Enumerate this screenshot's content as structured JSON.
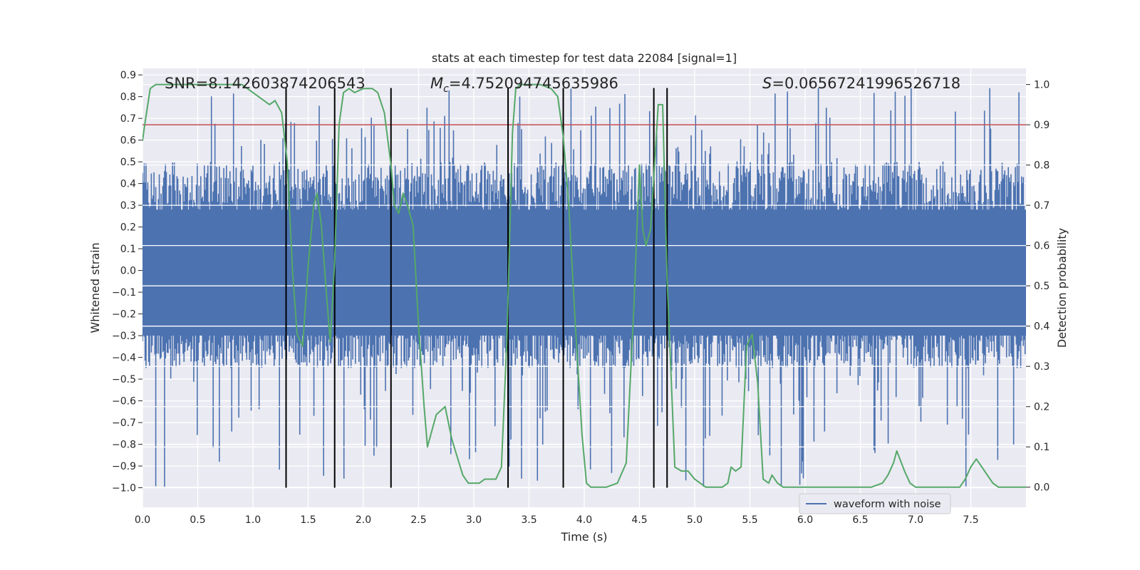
{
  "chart_data": {
    "type": "line",
    "title": "stats at each timestep for test data 22084 [signal=1]",
    "xlabel": "Time (s)",
    "ylabel": "Whitened strain",
    "y2label": "Detection probability",
    "xlim": [
      0.0,
      8.0
    ],
    "ylim": [
      -1.09,
      0.93
    ],
    "y2lim": [
      -0.05,
      1.04
    ],
    "xticks": [
      0.0,
      0.5,
      1.0,
      1.5,
      2.0,
      2.5,
      3.0,
      3.5,
      4.0,
      4.5,
      5.0,
      5.5,
      6.0,
      6.5,
      7.0,
      7.5
    ],
    "xtick_labels": [
      "0.0",
      "0.5",
      "1.0",
      "1.5",
      "2.0",
      "2.5",
      "3.0",
      "3.5",
      "4.0",
      "4.5",
      "5.0",
      "5.5",
      "6.0",
      "6.5",
      "7.0",
      "7.5"
    ],
    "yticks": [
      0.9,
      0.8,
      0.7,
      0.6,
      0.5,
      0.4,
      0.3,
      0.2,
      0.1,
      0.0,
      -0.1,
      -0.2,
      -0.3,
      -0.4,
      -0.5,
      -0.6,
      -0.7,
      -0.8,
      -0.9,
      -1.0
    ],
    "ytick_labels": [
      "0.9",
      "0.8",
      "0.7",
      "0.6",
      "0.5",
      "0.4",
      "0.3",
      "0.2",
      "0.1",
      "0.0",
      "−0.1",
      "−0.2",
      "−0.3",
      "−0.4",
      "−0.5",
      "−0.6",
      "−0.7",
      "−0.8",
      "−0.9",
      "−1.0"
    ],
    "y2ticks": [
      1.0,
      0.9,
      0.8,
      0.7,
      0.6,
      0.5,
      0.4,
      0.3,
      0.2,
      0.1,
      0.0
    ],
    "y2tick_labels": [
      "1.0",
      "0.9",
      "0.8",
      "0.7",
      "0.6",
      "0.5",
      "0.4",
      "0.3",
      "0.2",
      "0.1",
      "0.0"
    ],
    "annotations": [
      {
        "prefix": "SNR=",
        "value": "8.142603874206543",
        "x": 0.2
      },
      {
        "prefix": "M",
        "subscript": "c",
        "suffix": "=",
        "value": "4.752094745635986",
        "x": 2.6
      },
      {
        "prefix": "S",
        "suffix": "=",
        "value": "0.06567241996526718",
        "x": 5.6
      }
    ],
    "threshold": {
      "value": 0.9,
      "axis": "y2",
      "color": "#c44e52"
    },
    "vlines": [
      1.3,
      1.74,
      2.25,
      3.31,
      3.81,
      4.63,
      4.75
    ],
    "vline_range": [
      -1.0,
      0.84
    ],
    "series": [
      {
        "name": "waveform with noise",
        "axis": "y1",
        "color": "#4c72b0",
        "kind": "noise-band",
        "envelope": {
          "typical_max": 0.5,
          "spike_max": 0.84,
          "typical_min": -0.45,
          "spike_min": -1.0
        }
      },
      {
        "name": "detection probability",
        "axis": "y2",
        "color": "#55a868",
        "x": [
          0.0,
          0.02,
          0.07,
          0.12,
          0.2,
          0.3,
          0.4,
          0.5,
          0.6,
          0.7,
          0.8,
          0.9,
          0.95,
          1.0,
          1.05,
          1.1,
          1.15,
          1.2,
          1.26,
          1.31,
          1.36,
          1.4,
          1.45,
          1.5,
          1.55,
          1.58,
          1.62,
          1.66,
          1.7,
          1.74,
          1.78,
          1.82,
          1.87,
          1.92,
          2.0,
          2.08,
          2.13,
          2.19,
          2.25,
          2.28,
          2.32,
          2.36,
          2.4,
          2.45,
          2.5,
          2.55,
          2.58,
          2.62,
          2.66,
          2.74,
          2.8,
          2.9,
          2.95,
          3.0,
          3.05,
          3.1,
          3.15,
          3.2,
          3.25,
          3.3,
          3.35,
          3.38,
          3.42,
          3.45,
          3.5,
          3.6,
          3.7,
          3.76,
          3.81,
          3.86,
          3.92,
          3.98,
          4.02,
          4.06,
          4.1,
          4.2,
          4.3,
          4.38,
          4.45,
          4.5,
          4.53,
          4.56,
          4.6,
          4.63,
          4.67,
          4.71,
          4.75,
          4.82,
          4.88,
          4.94,
          5.0,
          5.05,
          5.1,
          5.2,
          5.25,
          5.3,
          5.33,
          5.37,
          5.42,
          5.47,
          5.52,
          5.57,
          5.62,
          5.67,
          5.7,
          5.75,
          5.8,
          5.9,
          6.0,
          6.2,
          6.4,
          6.6,
          6.7,
          6.75,
          6.8,
          6.83,
          6.9,
          6.95,
          7.0,
          7.1,
          7.2,
          7.3,
          7.4,
          7.45,
          7.5,
          7.55,
          7.6,
          7.65,
          7.7,
          7.75,
          7.8,
          7.9,
          8.0
        ],
        "values": [
          0.86,
          0.9,
          0.99,
          1.0,
          1.0,
          1.0,
          1.0,
          1.0,
          1.0,
          1.0,
          1.0,
          1.0,
          0.99,
          0.98,
          0.97,
          0.96,
          0.95,
          0.96,
          0.93,
          0.81,
          0.53,
          0.38,
          0.35,
          0.55,
          0.7,
          0.73,
          0.65,
          0.5,
          0.36,
          0.56,
          0.9,
          0.98,
          0.99,
          0.98,
          0.99,
          0.99,
          0.98,
          0.93,
          0.8,
          0.7,
          0.68,
          0.73,
          0.7,
          0.65,
          0.4,
          0.2,
          0.1,
          0.14,
          0.18,
          0.2,
          0.12,
          0.03,
          0.01,
          0.01,
          0.01,
          0.02,
          0.02,
          0.02,
          0.05,
          0.37,
          0.88,
          0.99,
          1.0,
          1.0,
          1.0,
          1.0,
          0.99,
          0.97,
          0.87,
          0.7,
          0.4,
          0.13,
          0.01,
          0.0,
          0.0,
          0.0,
          0.01,
          0.06,
          0.45,
          0.8,
          0.64,
          0.6,
          0.64,
          0.77,
          0.95,
          0.95,
          0.52,
          0.05,
          0.04,
          0.04,
          0.02,
          0.01,
          0.0,
          0.0,
          0.0,
          0.01,
          0.05,
          0.04,
          0.05,
          0.35,
          0.38,
          0.26,
          0.02,
          0.01,
          0.03,
          0.01,
          0.0,
          0.0,
          0.0,
          0.0,
          0.0,
          0.0,
          0.01,
          0.03,
          0.06,
          0.09,
          0.04,
          0.01,
          0.0,
          0.0,
          0.0,
          0.0,
          0.0,
          0.02,
          0.05,
          0.07,
          0.05,
          0.03,
          0.01,
          0.0,
          0.0,
          0.0,
          0.0
        ]
      }
    ],
    "legend": {
      "entries": [
        "waveform with noise"
      ],
      "placement": "lower-right"
    }
  }
}
